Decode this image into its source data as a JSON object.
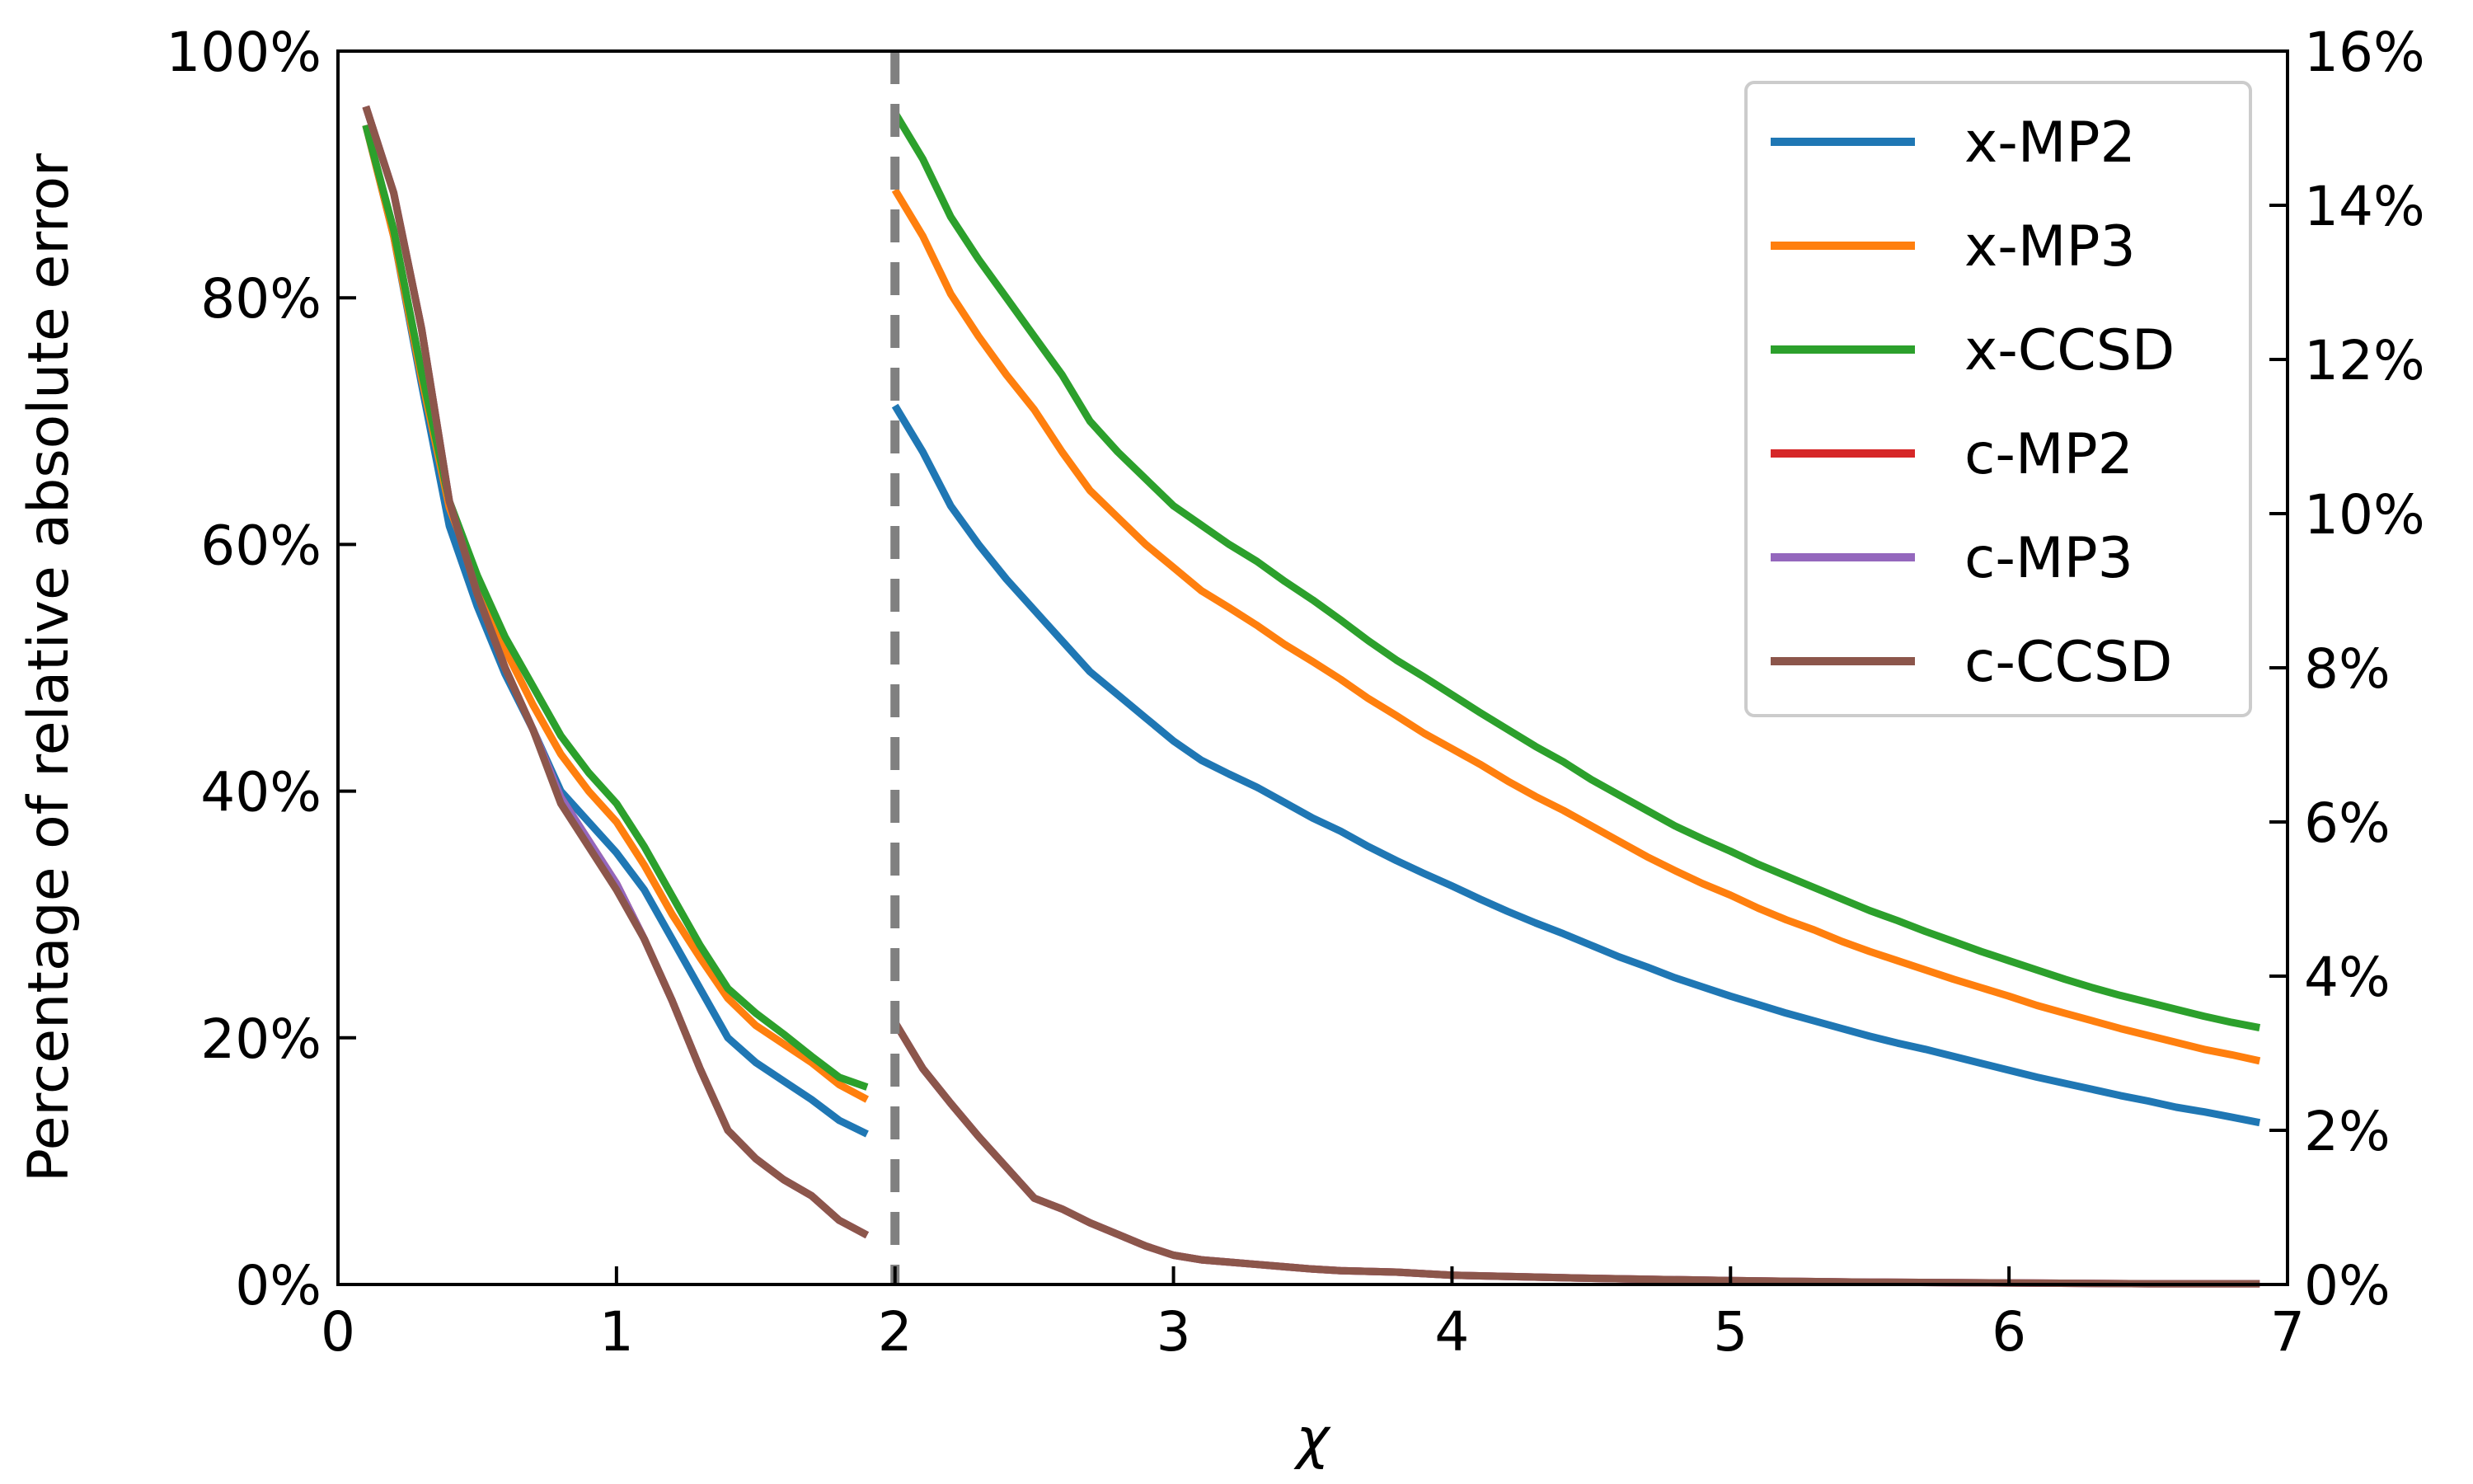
{
  "chart_data": {
    "type": "line",
    "xlabel": "χ",
    "ylabel": "Percentage of relative absolute error",
    "xlim": [
      0,
      7
    ],
    "xticks": [
      0,
      1,
      2,
      3,
      4,
      5,
      6,
      7
    ],
    "ylim_left": [
      0,
      100
    ],
    "ylim_right": [
      0,
      16
    ],
    "yticks_left": [
      0,
      20,
      40,
      60,
      80,
      100
    ],
    "yticks_right": [
      0,
      2,
      4,
      6,
      8,
      10,
      12,
      14,
      16
    ],
    "ytick_suffix": "%",
    "divider_x": 2,
    "legend_position": "upper-right",
    "grid": false,
    "series": [
      {
        "name": "x-MP2",
        "color": "#1f77b4",
        "left_segment": {
          "x": [
            0.1,
            0.2,
            0.3,
            0.4,
            0.5,
            0.6,
            0.7,
            0.8,
            0.9,
            1.0,
            1.1,
            1.2,
            1.3,
            1.4,
            1.5,
            1.6,
            1.7,
            1.8,
            1.9
          ],
          "y": [
            94,
            85,
            73,
            61.5,
            55,
            49.5,
            45,
            40,
            37.5,
            35,
            32,
            28,
            24,
            20,
            18,
            16.5,
            15,
            13.3,
            12.2
          ]
        },
        "right_segment": {
          "x": [
            2.0,
            2.1,
            2.2,
            2.3,
            2.4,
            2.5,
            2.6,
            2.7,
            2.8,
            2.9,
            3.0,
            3.1,
            3.2,
            3.3,
            3.4,
            3.5,
            3.6,
            3.7,
            3.8,
            3.9,
            4.0,
            4.1,
            4.2,
            4.3,
            4.4,
            4.5,
            4.6,
            4.7,
            4.8,
            4.9,
            5.0,
            5.1,
            5.2,
            5.3,
            5.4,
            5.5,
            5.6,
            5.7,
            5.8,
            5.9,
            6.0,
            6.1,
            6.2,
            6.3,
            6.4,
            6.5,
            6.6,
            6.7,
            6.8,
            6.9
          ],
          "y": [
            11.4,
            10.8,
            10.1,
            9.6,
            9.15,
            8.75,
            8.35,
            7.95,
            7.65,
            7.35,
            7.05,
            6.8,
            6.62,
            6.45,
            6.25,
            6.05,
            5.88,
            5.68,
            5.5,
            5.33,
            5.17,
            5.0,
            4.84,
            4.69,
            4.55,
            4.4,
            4.25,
            4.12,
            3.98,
            3.86,
            3.74,
            3.63,
            3.52,
            3.42,
            3.32,
            3.22,
            3.13,
            3.05,
            2.96,
            2.87,
            2.78,
            2.69,
            2.61,
            2.53,
            2.45,
            2.38,
            2.3,
            2.24,
            2.17,
            2.1
          ]
        }
      },
      {
        "name": "x-MP3",
        "color": "#ff7f0e",
        "left_segment": {
          "x": [
            0.1,
            0.2,
            0.3,
            0.4,
            0.5,
            0.6,
            0.7,
            0.8,
            0.9,
            1.0,
            1.1,
            1.2,
            1.3,
            1.4,
            1.5,
            1.6,
            1.7,
            1.8,
            1.9
          ],
          "y": [
            94,
            85,
            73.5,
            63,
            57,
            51.5,
            47,
            43,
            40,
            37.5,
            34,
            30,
            26.5,
            23.2,
            21,
            19.5,
            18,
            16.2,
            15
          ]
        },
        "right_segment": {
          "x": [
            2.0,
            2.1,
            2.2,
            2.3,
            2.4,
            2.5,
            2.6,
            2.7,
            2.8,
            2.9,
            3.0,
            3.1,
            3.2,
            3.3,
            3.4,
            3.5,
            3.6,
            3.7,
            3.8,
            3.9,
            4.0,
            4.1,
            4.2,
            4.3,
            4.4,
            4.5,
            4.6,
            4.7,
            4.8,
            4.9,
            5.0,
            5.1,
            5.2,
            5.3,
            5.4,
            5.5,
            5.6,
            5.7,
            5.8,
            5.9,
            6.0,
            6.1,
            6.2,
            6.3,
            6.4,
            6.5,
            6.6,
            6.7,
            6.8,
            6.9
          ],
          "y": [
            14.2,
            13.6,
            12.85,
            12.3,
            11.8,
            11.35,
            10.8,
            10.3,
            9.95,
            9.6,
            9.3,
            9.0,
            8.78,
            8.55,
            8.3,
            8.08,
            7.85,
            7.6,
            7.38,
            7.15,
            6.95,
            6.75,
            6.53,
            6.33,
            6.15,
            5.95,
            5.75,
            5.55,
            5.37,
            5.2,
            5.05,
            4.88,
            4.73,
            4.6,
            4.45,
            4.32,
            4.2,
            4.08,
            3.96,
            3.85,
            3.74,
            3.62,
            3.52,
            3.42,
            3.32,
            3.23,
            3.14,
            3.05,
            2.98,
            2.9
          ]
        }
      },
      {
        "name": "x-CCSD",
        "color": "#2ca02c",
        "left_segment": {
          "x": [
            0.1,
            0.2,
            0.3,
            0.4,
            0.5,
            0.6,
            0.7,
            0.8,
            0.9,
            1.0,
            1.1,
            1.2,
            1.3,
            1.4,
            1.5,
            1.6,
            1.7,
            1.8,
            1.9
          ],
          "y": [
            94,
            85.5,
            74,
            63.5,
            57.5,
            52.5,
            48.5,
            44.5,
            41.5,
            39,
            35.5,
            31.5,
            27.5,
            24,
            22,
            20.3,
            18.5,
            16.8,
            16
          ]
        },
        "right_segment": {
          "x": [
            2.0,
            2.1,
            2.2,
            2.3,
            2.4,
            2.5,
            2.6,
            2.7,
            2.8,
            2.9,
            3.0,
            3.1,
            3.2,
            3.3,
            3.4,
            3.5,
            3.6,
            3.7,
            3.8,
            3.9,
            4.0,
            4.1,
            4.2,
            4.3,
            4.4,
            4.5,
            4.6,
            4.7,
            4.8,
            4.9,
            5.0,
            5.1,
            5.2,
            5.3,
            5.4,
            5.5,
            5.6,
            5.7,
            5.8,
            5.9,
            6.0,
            6.1,
            6.2,
            6.3,
            6.4,
            6.5,
            6.6,
            6.7,
            6.8,
            6.9
          ],
          "y": [
            15.2,
            14.6,
            13.85,
            13.3,
            12.8,
            12.3,
            11.8,
            11.2,
            10.8,
            10.45,
            10.1,
            9.85,
            9.6,
            9.38,
            9.12,
            8.88,
            8.62,
            8.35,
            8.1,
            7.88,
            7.65,
            7.42,
            7.2,
            6.98,
            6.78,
            6.55,
            6.35,
            6.15,
            5.95,
            5.78,
            5.62,
            5.45,
            5.3,
            5.15,
            5.0,
            4.85,
            4.72,
            4.58,
            4.45,
            4.32,
            4.2,
            4.08,
            3.96,
            3.85,
            3.75,
            3.66,
            3.57,
            3.48,
            3.4,
            3.33
          ]
        }
      },
      {
        "name": "c-MP2",
        "color": "#d62728",
        "left_segment": {
          "x": [
            0.1,
            0.2,
            0.3,
            0.4,
            0.5,
            0.6,
            0.7,
            0.8,
            0.9,
            1.0,
            1.1,
            1.2,
            1.3,
            1.4,
            1.5,
            1.6,
            1.7,
            1.8,
            1.9
          ],
          "y": [
            95.5,
            88.5,
            77.5,
            63.5,
            56,
            50,
            45,
            39.5,
            36,
            32.5,
            28,
            23,
            17.5,
            12.5,
            10.2,
            8.5,
            7.2,
            5.2,
            4
          ]
        },
        "right_segment": {
          "x": [
            2.0,
            2.1,
            2.2,
            2.3,
            2.4,
            2.5,
            2.6,
            2.7,
            2.8,
            2.9,
            3.0,
            3.1,
            3.2,
            3.3,
            3.4,
            3.5,
            3.6,
            3.7,
            3.8,
            3.9,
            4.0,
            4.5,
            5.0,
            5.5,
            6.0,
            6.5,
            6.9
          ],
          "y": [
            3.4,
            2.8,
            2.35,
            1.92,
            1.52,
            1.12,
            0.98,
            0.8,
            0.65,
            0.5,
            0.38,
            0.32,
            0.29,
            0.26,
            0.23,
            0.2,
            0.18,
            0.17,
            0.16,
            0.14,
            0.12,
            0.08,
            0.05,
            0.03,
            0.02,
            0.01,
            0.01
          ]
        }
      },
      {
        "name": "c-MP3",
        "color": "#9467bd",
        "left_segment": {
          "x": [
            0.1,
            0.2,
            0.3,
            0.4,
            0.5,
            0.6,
            0.7,
            0.8,
            0.9,
            1.0,
            1.1,
            1.2,
            1.3,
            1.4,
            1.5,
            1.6,
            1.7,
            1.8,
            1.9
          ],
          "y": [
            95.5,
            88.5,
            77.5,
            63.5,
            56,
            50,
            45,
            39.5,
            36,
            32.5,
            28,
            23,
            17.5,
            12.5,
            10.2,
            8.5,
            7.2,
            5.2,
            4
          ]
        },
        "right_segment": {
          "x": [
            2.0,
            2.1,
            2.2,
            2.3,
            2.4,
            2.5,
            2.6,
            2.7,
            2.8,
            2.9,
            3.0,
            3.1,
            3.2,
            3.3,
            3.4,
            3.5,
            3.6,
            3.7,
            3.8,
            3.9,
            4.0,
            4.5,
            5.0,
            5.5,
            6.0,
            6.5,
            6.9
          ],
          "y": [
            3.4,
            2.8,
            2.35,
            1.92,
            1.52,
            1.12,
            0.98,
            0.8,
            0.65,
            0.5,
            0.38,
            0.32,
            0.29,
            0.26,
            0.23,
            0.2,
            0.18,
            0.17,
            0.16,
            0.14,
            0.12,
            0.08,
            0.05,
            0.03,
            0.02,
            0.01,
            0.01
          ]
        }
      },
      {
        "name": "c-CCSD",
        "color": "#8c564b",
        "left_segment": {
          "x": [
            0.1,
            0.2,
            0.3,
            0.4,
            0.5,
            0.6,
            0.7,
            0.8,
            0.9,
            1.0,
            1.1,
            1.2,
            1.3,
            1.4,
            1.5,
            1.6,
            1.7,
            1.8,
            1.9
          ],
          "y": [
            95.5,
            88.5,
            77.5,
            63.5,
            56,
            50,
            45,
            39,
            35.5,
            32,
            28,
            23,
            17.5,
            12.5,
            10.2,
            8.5,
            7.2,
            5.2,
            4
          ]
        },
        "right_segment": {
          "x": [
            2.0,
            2.1,
            2.2,
            2.3,
            2.4,
            2.5,
            2.6,
            2.7,
            2.8,
            2.9,
            3.0,
            3.1,
            3.2,
            3.3,
            3.4,
            3.5,
            3.6,
            3.7,
            3.8,
            3.9,
            4.0,
            4.5,
            5.0,
            5.5,
            6.0,
            6.5,
            6.9
          ],
          "y": [
            3.4,
            2.8,
            2.35,
            1.92,
            1.52,
            1.12,
            0.98,
            0.8,
            0.65,
            0.5,
            0.38,
            0.32,
            0.29,
            0.26,
            0.23,
            0.2,
            0.18,
            0.17,
            0.16,
            0.14,
            0.12,
            0.08,
            0.05,
            0.03,
            0.02,
            0.01,
            0.01
          ]
        }
      }
    ]
  }
}
